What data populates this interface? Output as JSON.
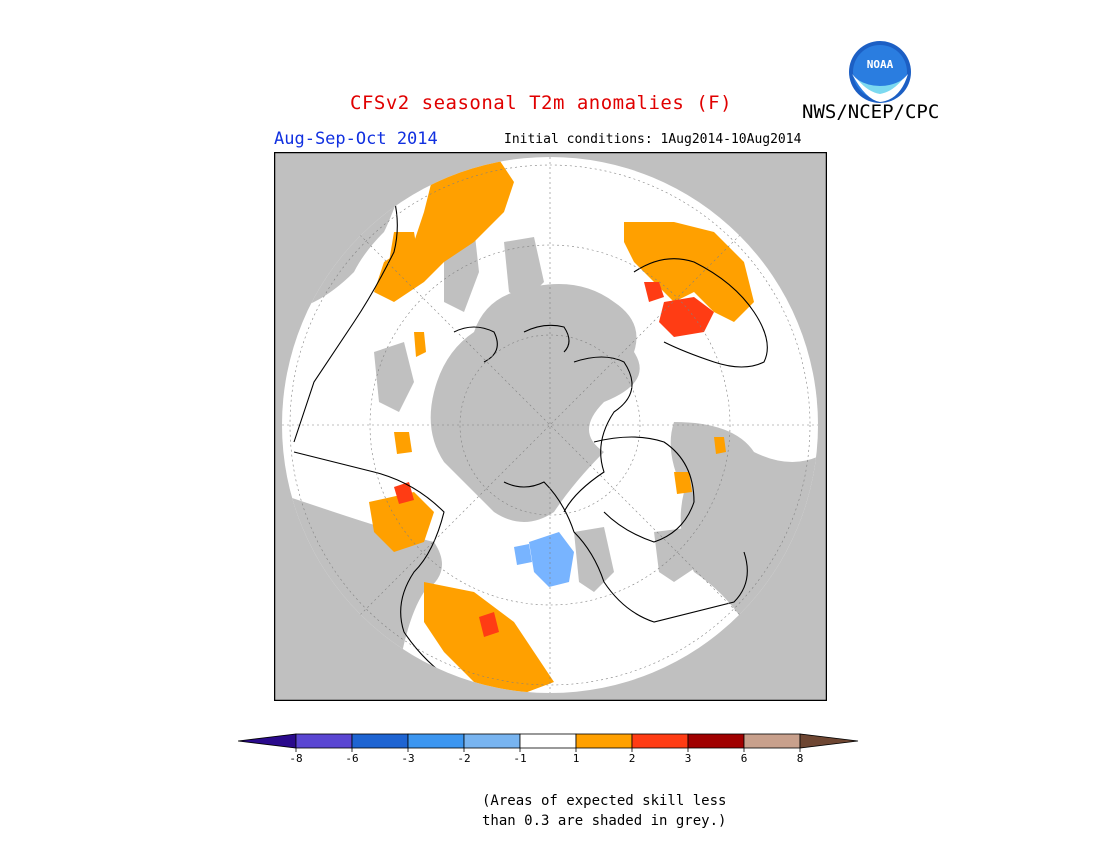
{
  "title": "CFSv2 seasonal T2m anomalies (F)",
  "agency": "NWS/NCEP/CPC",
  "logo_text": "NOAA",
  "season": "Aug-Sep-Oct 2014",
  "initial_conditions": "Initial conditions: 1Aug2014-10Aug2014",
  "note_line1": "(Areas of expected skill less",
  "note_line2": "than 0.3 are shaded in grey.)",
  "colors": {
    "grey": "#c0c0c0",
    "land_white": "#ffffff",
    "cat_1_2": "#ffa000",
    "cat_2_3": "#ff3c14",
    "cat_neg": "#78b4ff"
  },
  "legend": {
    "ticks": [
      "-8",
      "-6",
      "-3",
      "-2",
      "-1",
      "1",
      "2",
      "3",
      "6",
      "8"
    ],
    "bins": [
      {
        "color": "#2a0a8c"
      },
      {
        "color": "#5a46d2"
      },
      {
        "color": "#1e64d2"
      },
      {
        "color": "#3c96f0"
      },
      {
        "color": "#78b4f0"
      },
      {
        "color": "#ffffff"
      },
      {
        "color": "#ffa000"
      },
      {
        "color": "#ff3c14"
      },
      {
        "color": "#a00000"
      },
      {
        "color": "#c8a08c"
      },
      {
        "color": "#6e4632"
      }
    ]
  }
}
